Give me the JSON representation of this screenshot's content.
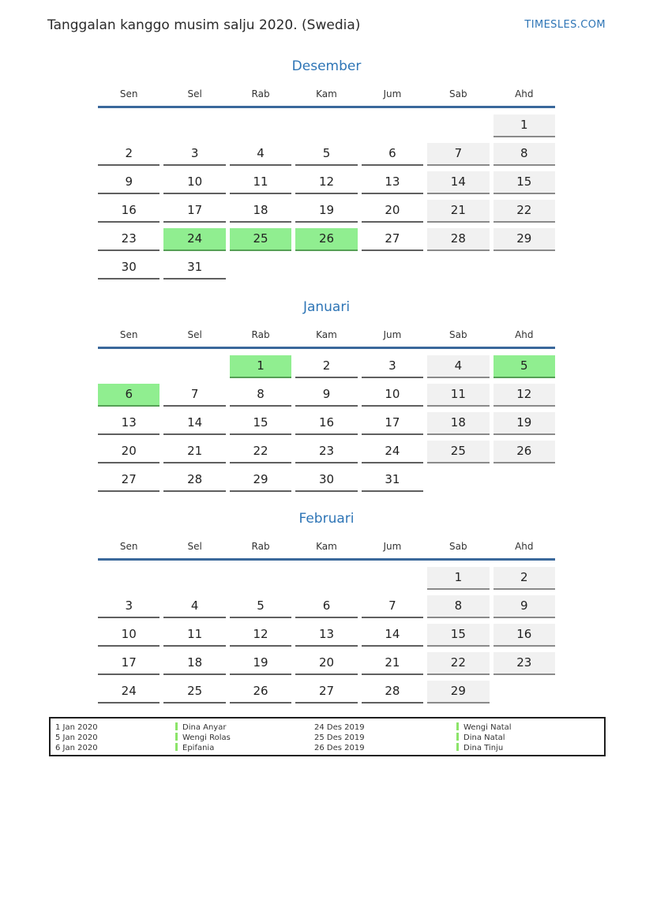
{
  "page": {
    "title": "Tanggalan kanggo musim salju 2020. (Swedia)",
    "brand": "TIMESLES.COM"
  },
  "colors": {
    "accent_blue": "#2e75b6",
    "header_underline_blue": "#3a689b",
    "holiday_green": "#90ee90",
    "holiday_border_green": "#55a055",
    "weekend_gray": "#f1f1f1",
    "cell_border_gray": "#5f5f5f",
    "legend_marker_green": "#8ce46a"
  },
  "day_names": [
    "Sen",
    "Sel",
    "Rab",
    "Kam",
    "Jum",
    "Sab",
    "Ahd"
  ],
  "months": [
    {
      "name": "Desember",
      "weeks": [
        [
          null,
          null,
          null,
          null,
          null,
          null,
          {
            "day": 1,
            "type": "weekend"
          }
        ],
        [
          {
            "day": 2,
            "type": "normal"
          },
          {
            "day": 3,
            "type": "normal"
          },
          {
            "day": 4,
            "type": "normal"
          },
          {
            "day": 5,
            "type": "normal"
          },
          {
            "day": 6,
            "type": "normal"
          },
          {
            "day": 7,
            "type": "weekend"
          },
          {
            "day": 8,
            "type": "weekend"
          }
        ],
        [
          {
            "day": 9,
            "type": "normal"
          },
          {
            "day": 10,
            "type": "normal"
          },
          {
            "day": 11,
            "type": "normal"
          },
          {
            "day": 12,
            "type": "normal"
          },
          {
            "day": 13,
            "type": "normal"
          },
          {
            "day": 14,
            "type": "weekend"
          },
          {
            "day": 15,
            "type": "weekend"
          }
        ],
        [
          {
            "day": 16,
            "type": "normal"
          },
          {
            "day": 17,
            "type": "normal"
          },
          {
            "day": 18,
            "type": "normal"
          },
          {
            "day": 19,
            "type": "normal"
          },
          {
            "day": 20,
            "type": "normal"
          },
          {
            "day": 21,
            "type": "weekend"
          },
          {
            "day": 22,
            "type": "weekend"
          }
        ],
        [
          {
            "day": 23,
            "type": "normal"
          },
          {
            "day": 24,
            "type": "holiday"
          },
          {
            "day": 25,
            "type": "holiday"
          },
          {
            "day": 26,
            "type": "holiday"
          },
          {
            "day": 27,
            "type": "normal"
          },
          {
            "day": 28,
            "type": "weekend"
          },
          {
            "day": 29,
            "type": "weekend"
          }
        ],
        [
          {
            "day": 30,
            "type": "normal"
          },
          {
            "day": 31,
            "type": "normal"
          },
          null,
          null,
          null,
          null,
          null
        ]
      ]
    },
    {
      "name": "Januari",
      "weeks": [
        [
          null,
          null,
          {
            "day": 1,
            "type": "holiday"
          },
          {
            "day": 2,
            "type": "normal"
          },
          {
            "day": 3,
            "type": "normal"
          },
          {
            "day": 4,
            "type": "weekend"
          },
          {
            "day": 5,
            "type": "holiday"
          }
        ],
        [
          {
            "day": 6,
            "type": "holiday"
          },
          {
            "day": 7,
            "type": "normal"
          },
          {
            "day": 8,
            "type": "normal"
          },
          {
            "day": 9,
            "type": "normal"
          },
          {
            "day": 10,
            "type": "normal"
          },
          {
            "day": 11,
            "type": "weekend"
          },
          {
            "day": 12,
            "type": "weekend"
          }
        ],
        [
          {
            "day": 13,
            "type": "normal"
          },
          {
            "day": 14,
            "type": "normal"
          },
          {
            "day": 15,
            "type": "normal"
          },
          {
            "day": 16,
            "type": "normal"
          },
          {
            "day": 17,
            "type": "normal"
          },
          {
            "day": 18,
            "type": "weekend"
          },
          {
            "day": 19,
            "type": "weekend"
          }
        ],
        [
          {
            "day": 20,
            "type": "normal"
          },
          {
            "day": 21,
            "type": "normal"
          },
          {
            "day": 22,
            "type": "normal"
          },
          {
            "day": 23,
            "type": "normal"
          },
          {
            "day": 24,
            "type": "normal"
          },
          {
            "day": 25,
            "type": "weekend"
          },
          {
            "day": 26,
            "type": "weekend"
          }
        ],
        [
          {
            "day": 27,
            "type": "normal"
          },
          {
            "day": 28,
            "type": "normal"
          },
          {
            "day": 29,
            "type": "normal"
          },
          {
            "day": 30,
            "type": "normal"
          },
          {
            "day": 31,
            "type": "normal"
          },
          null,
          null
        ]
      ]
    },
    {
      "name": "Februari",
      "weeks": [
        [
          null,
          null,
          null,
          null,
          null,
          {
            "day": 1,
            "type": "weekend"
          },
          {
            "day": 2,
            "type": "weekend"
          }
        ],
        [
          {
            "day": 3,
            "type": "normal"
          },
          {
            "day": 4,
            "type": "normal"
          },
          {
            "day": 5,
            "type": "normal"
          },
          {
            "day": 6,
            "type": "normal"
          },
          {
            "day": 7,
            "type": "normal"
          },
          {
            "day": 8,
            "type": "weekend"
          },
          {
            "day": 9,
            "type": "weekend"
          }
        ],
        [
          {
            "day": 10,
            "type": "normal"
          },
          {
            "day": 11,
            "type": "normal"
          },
          {
            "day": 12,
            "type": "normal"
          },
          {
            "day": 13,
            "type": "normal"
          },
          {
            "day": 14,
            "type": "normal"
          },
          {
            "day": 15,
            "type": "weekend"
          },
          {
            "day": 16,
            "type": "weekend"
          }
        ],
        [
          {
            "day": 17,
            "type": "normal"
          },
          {
            "day": 18,
            "type": "normal"
          },
          {
            "day": 19,
            "type": "normal"
          },
          {
            "day": 20,
            "type": "normal"
          },
          {
            "day": 21,
            "type": "normal"
          },
          {
            "day": 22,
            "type": "weekend"
          },
          {
            "day": 23,
            "type": "weekend"
          }
        ],
        [
          {
            "day": 24,
            "type": "normal"
          },
          {
            "day": 25,
            "type": "normal"
          },
          {
            "day": 26,
            "type": "normal"
          },
          {
            "day": 27,
            "type": "normal"
          },
          {
            "day": 28,
            "type": "normal"
          },
          {
            "day": 29,
            "type": "weekend"
          },
          null
        ]
      ]
    }
  ],
  "legend": {
    "columns": [
      {
        "entries": [
          {
            "date": "1 Jan 2020",
            "name": "Dina Anyar"
          },
          {
            "date": "5 Jan 2020",
            "name": "Wengi Rolas"
          },
          {
            "date": "6 Jan 2020",
            "name": "Epifania"
          }
        ]
      },
      {
        "entries": [
          {
            "date": "24 Des 2019",
            "name": "Wengi Natal"
          },
          {
            "date": "25 Des 2019",
            "name": "Dina Natal"
          },
          {
            "date": "26 Des 2019",
            "name": "Dina Tinju"
          }
        ]
      }
    ]
  }
}
